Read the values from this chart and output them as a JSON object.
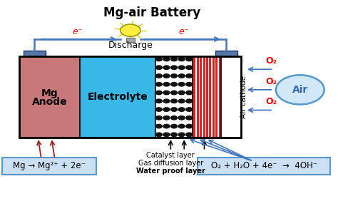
{
  "title": "Mg-air Battery",
  "bg_color": "#ffffff",
  "anode_color": "#c87878",
  "electrolyte_color": "#38b8e8",
  "connector_color": "#5577aa",
  "wire_color": "#4477bb",
  "o2_arrow_color": "#4477bb",
  "red_stripe_color": "#dd2222",
  "dot_color": "#111111",
  "air_fill": "#d0e8f8",
  "air_border": "#5599cc",
  "box_fill": "#cce0f5",
  "box_border": "#5599cc",
  "anode_arrow_color": "#992222",
  "discharge_label": "Discharge",
  "air_label": "Air",
  "air_cathode_label": "Air cathode",
  "catalyst_label": "Catalyst layer",
  "gas_diffusion_label": "Gas diffusion layer",
  "waterproof_label": "Water proof layer",
  "mg_reaction": "Mg → Mg²⁺ + 2e⁻",
  "o2_reaction": "O₂ + H₂O + 4e⁻  →  4OH⁻",
  "e_label": "e⁻",
  "o2_label": "O₂",
  "mg_label1": "Mg",
  "mg_label2": "Anode",
  "elec_label": "Electrolyte"
}
